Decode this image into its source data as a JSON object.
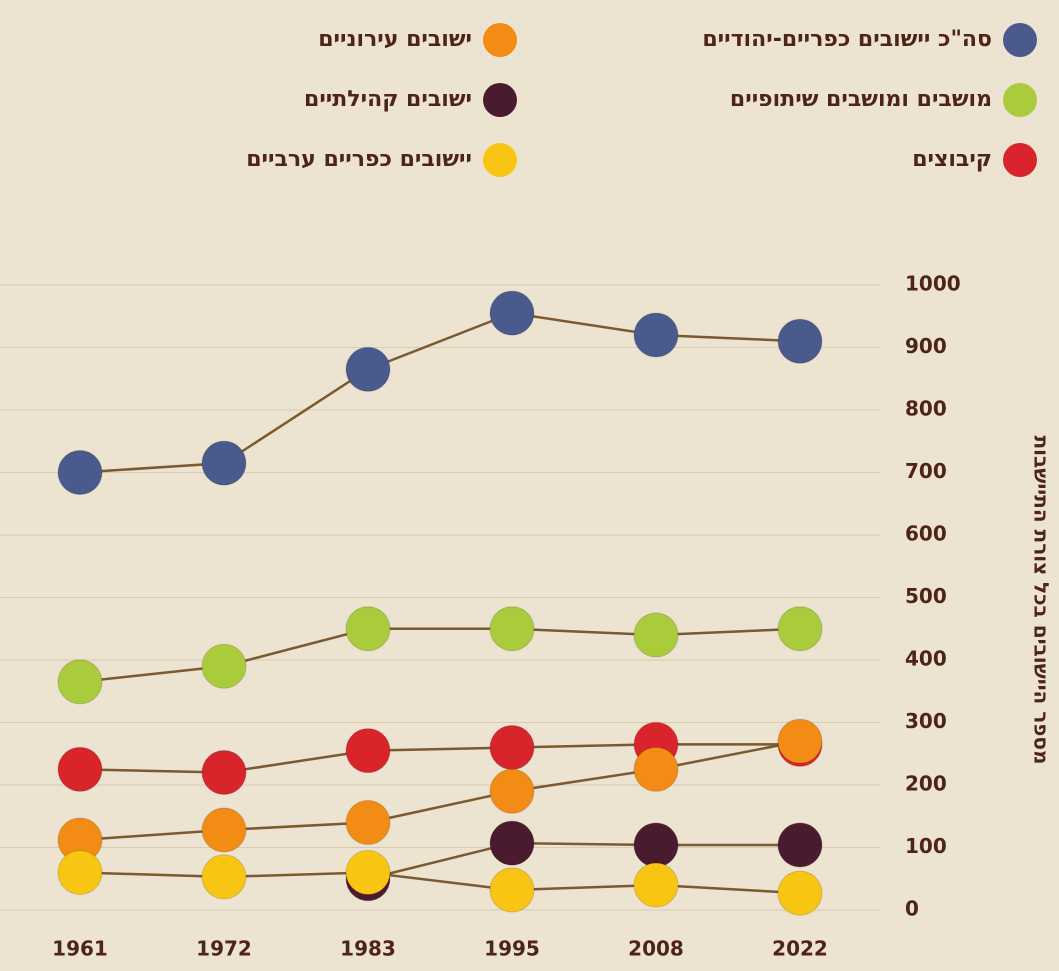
{
  "chart_data": {
    "type": "line",
    "y_label": "מספר היישובים בכל צורת התיישבות",
    "categories": [
      "1961",
      "1972",
      "1983",
      "1995",
      "2008",
      "2022"
    ],
    "series": [
      {
        "name": "סה\"כ יישובים כפריים-יהודיים",
        "color": "#4a5a8c",
        "values": [
          700,
          715,
          865,
          955,
          920,
          910
        ]
      },
      {
        "name": "מושבים ומושבים שיתופיים",
        "color": "#a9cb3c",
        "values": [
          365,
          390,
          450,
          450,
          440,
          450
        ]
      },
      {
        "name": "קיבוצים",
        "color": "#d9242c",
        "values": [
          225,
          220,
          255,
          260,
          265,
          265
        ]
      },
      {
        "name": "ישובים עירוניים",
        "color": "#f28c14",
        "values": [
          112,
          128,
          140,
          190,
          225,
          270
        ]
      },
      {
        "name": "ישובים קהילתיים",
        "color": "#4a1a2e",
        "values": [
          null,
          null,
          50,
          107,
          104,
          104
        ]
      },
      {
        "name": "יישובים כפריים ערביים",
        "color": "#f7c512",
        "values": [
          60,
          53,
          60,
          32,
          40,
          27
        ]
      }
    ],
    "ylim": [
      0,
      1000
    ],
    "yticks": [
      0,
      100,
      200,
      300,
      400,
      500,
      600,
      700,
      800,
      900,
      1000
    ],
    "grid": true,
    "line_color": "#7a5a2e"
  }
}
